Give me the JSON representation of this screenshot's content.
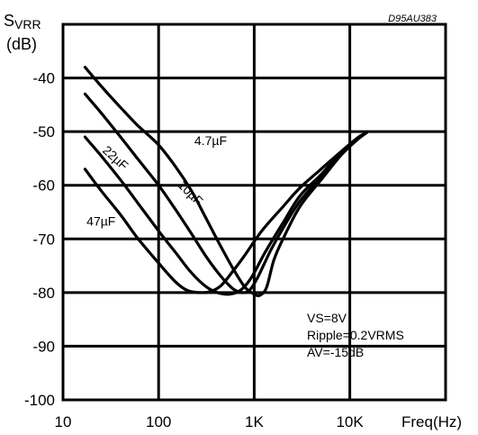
{
  "chart_data": {
    "type": "line",
    "code": "D95AU383",
    "ylabel_main": "S",
    "ylabel_sub": "VRR",
    "ylabel_unit": "(dB)",
    "xlabel": "Freq(Hz)",
    "xscale": "log",
    "xlim": [
      10,
      20000
    ],
    "ylim": [
      -100,
      -30
    ],
    "grid": true,
    "x_ticks": [
      {
        "value": 10,
        "label": "10"
      },
      {
        "value": 100,
        "label": "100"
      },
      {
        "value": 1000,
        "label": "1K"
      },
      {
        "value": 10000,
        "label": "10K"
      }
    ],
    "y_ticks": [
      {
        "value": -40,
        "label": "-40"
      },
      {
        "value": -50,
        "label": "-50"
      },
      {
        "value": -60,
        "label": "-60"
      },
      {
        "value": -70,
        "label": "-70"
      },
      {
        "value": -80,
        "label": "-80"
      },
      {
        "value": -90,
        "label": "-90"
      },
      {
        "value": -100,
        "label": "-100"
      }
    ],
    "series": [
      {
        "name": "4.7µF",
        "label_at": [
          350,
          -52.5
        ],
        "label_angle": 0,
        "points": [
          [
            17,
            -38
          ],
          [
            25,
            -41.5
          ],
          [
            40,
            -45.5
          ],
          [
            60,
            -48.8
          ],
          [
            100,
            -52.5
          ],
          [
            150,
            -56.5
          ],
          [
            220,
            -61
          ],
          [
            300,
            -65.5
          ],
          [
            420,
            -70.5
          ],
          [
            600,
            -75.5
          ],
          [
            800,
            -79
          ],
          [
            1000,
            -80.3
          ],
          [
            1150,
            -80.5
          ],
          [
            1350,
            -79
          ],
          [
            1600,
            -74
          ],
          [
            2000,
            -70
          ],
          [
            3000,
            -64
          ],
          [
            5000,
            -59
          ],
          [
            8000,
            -54.5
          ],
          [
            12000,
            -51.5
          ],
          [
            15000,
            -50.2
          ]
        ]
      },
      {
        "name": "10µF",
        "label_at": [
          200,
          -62
        ],
        "label_angle": 45,
        "points": [
          [
            17,
            -43
          ],
          [
            25,
            -46.5
          ],
          [
            40,
            -51
          ],
          [
            60,
            -55
          ],
          [
            100,
            -60
          ],
          [
            150,
            -64.5
          ],
          [
            220,
            -69
          ],
          [
            320,
            -73.5
          ],
          [
            450,
            -77
          ],
          [
            600,
            -79.3
          ],
          [
            750,
            -80
          ],
          [
            900,
            -79.5
          ],
          [
            1100,
            -77
          ],
          [
            1500,
            -72
          ],
          [
            2000,
            -68
          ],
          [
            3000,
            -63
          ],
          [
            5000,
            -58.5
          ],
          [
            8000,
            -54.2
          ],
          [
            12000,
            -51.3
          ],
          [
            15000,
            -50.2
          ]
        ]
      },
      {
        "name": "22µF",
        "label_at": [
          33,
          -55.5
        ],
        "label_angle": 42,
        "points": [
          [
            17,
            -51
          ],
          [
            25,
            -54.5
          ],
          [
            40,
            -59
          ],
          [
            60,
            -63.2
          ],
          [
            100,
            -68.5
          ],
          [
            150,
            -72.5
          ],
          [
            220,
            -76.3
          ],
          [
            320,
            -79
          ],
          [
            450,
            -80.2
          ],
          [
            600,
            -80.2
          ],
          [
            750,
            -79.3
          ],
          [
            950,
            -77
          ],
          [
            1300,
            -72.5
          ],
          [
            2000,
            -67
          ],
          [
            3000,
            -62
          ],
          [
            5000,
            -58
          ],
          [
            8000,
            -54
          ],
          [
            12000,
            -51.2
          ],
          [
            15000,
            -50.2
          ]
        ]
      },
      {
        "name": "47µF",
        "label_at": [
          25,
          -67.5
        ],
        "label_angle": 0,
        "points": [
          [
            17,
            -57
          ],
          [
            25,
            -61
          ],
          [
            40,
            -65.5
          ],
          [
            60,
            -69.8
          ],
          [
            100,
            -74.5
          ],
          [
            150,
            -78
          ],
          [
            200,
            -79.6
          ],
          [
            270,
            -80
          ],
          [
            350,
            -79.8
          ],
          [
            450,
            -78.7
          ],
          [
            600,
            -76
          ],
          [
            800,
            -73
          ],
          [
            1200,
            -68.5
          ],
          [
            2000,
            -64
          ],
          [
            3000,
            -60.5
          ],
          [
            5000,
            -57
          ],
          [
            8000,
            -53.8
          ],
          [
            12000,
            -51.2
          ],
          [
            15000,
            -50.2
          ]
        ]
      }
    ],
    "annotations": [
      "VS=8V",
      "Ripple=0.2VRMS",
      "AV=-15dB"
    ]
  }
}
